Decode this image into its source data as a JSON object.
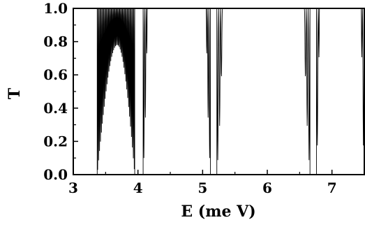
{
  "chart_data": {
    "type": "line",
    "title": "",
    "xlabel": "E (me V)",
    "ylabel": "T",
    "xlim": [
      3.0,
      7.5
    ],
    "ylim": [
      0.0,
      1.0
    ],
    "x_ticks": [
      3,
      4,
      5,
      6,
      7
    ],
    "x_tick_labels": [
      "3",
      "4",
      "5",
      "6",
      "7"
    ],
    "y_ticks": [
      0.0,
      0.2,
      0.4,
      0.6,
      0.8,
      1.0
    ],
    "y_tick_labels": [
      "0.0",
      "0.2",
      "0.4",
      "0.6",
      "0.8",
      "1.0"
    ],
    "grid": false,
    "legend": false,
    "line_color": "#000000",
    "bands": [
      {
        "start": 3.37,
        "end": 3.95,
        "min_envelope_peak": 0.78,
        "min_envelope_peak_at": 3.68,
        "resonance_count": 40
      },
      {
        "start": 4.08,
        "end": 5.12,
        "min_envelope_peak": 1.0,
        "min_envelope_peak_at": 4.6,
        "resonance_count": 44
      },
      {
        "start": 5.22,
        "end": 6.66,
        "min_envelope_peak": 1.0,
        "min_envelope_peak_at": 5.94,
        "resonance_count": 50
      },
      {
        "start": 6.76,
        "end": 7.5,
        "min_envelope_peak": 1.0,
        "min_envelope_peak_at": 7.5,
        "resonance_count": 26
      }
    ],
    "gaps": [
      {
        "start": 3.0,
        "end": 3.37,
        "T": 0.0
      },
      {
        "start": 3.95,
        "end": 4.08,
        "T": 0.0
      },
      {
        "start": 5.12,
        "end": 5.22,
        "T": 0.0
      },
      {
        "start": 6.66,
        "end": 6.76,
        "T": 0.0
      }
    ]
  }
}
